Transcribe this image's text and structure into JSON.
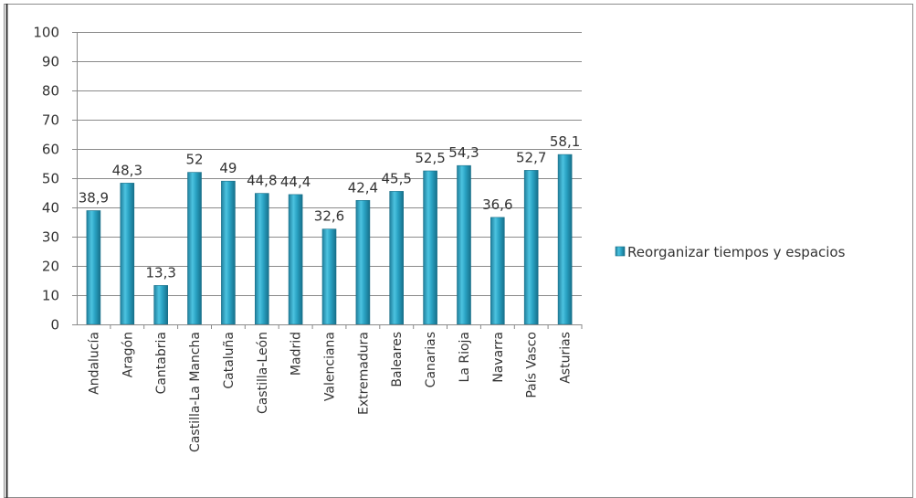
{
  "chart_data": {
    "type": "bar",
    "categories": [
      "Andalucía",
      "Aragón",
      "Cantabria",
      "Castilla-La Mancha",
      "Cataluña",
      "Castilla-León",
      "Madrid",
      "Valenciana",
      "Extremadura",
      "Baleares",
      "Canarias",
      "La Rioja",
      "Navarra",
      "País Vasco",
      "Asturias"
    ],
    "series": [
      {
        "name": "Reorganizar tiempos y espacios",
        "values": [
          38.9,
          48.3,
          13.3,
          52,
          49,
          44.8,
          44.4,
          32.6,
          42.4,
          45.5,
          52.5,
          54.3,
          36.6,
          52.7,
          58.1
        ],
        "labels": [
          "38,9",
          "48,3",
          "13,3",
          "52",
          "49",
          "44,8",
          "44,4",
          "32,6",
          "42,4",
          "45,5",
          "52,5",
          "54,3",
          "36,6",
          "52,7",
          "58,1"
        ],
        "color": "#2aa3c4"
      }
    ],
    "ylim": [
      0,
      100
    ],
    "yticks": [
      "0",
      "10",
      "20",
      "30",
      "40",
      "50",
      "60",
      "70",
      "80",
      "90",
      "100"
    ],
    "grid": true,
    "legend_position": "right"
  }
}
